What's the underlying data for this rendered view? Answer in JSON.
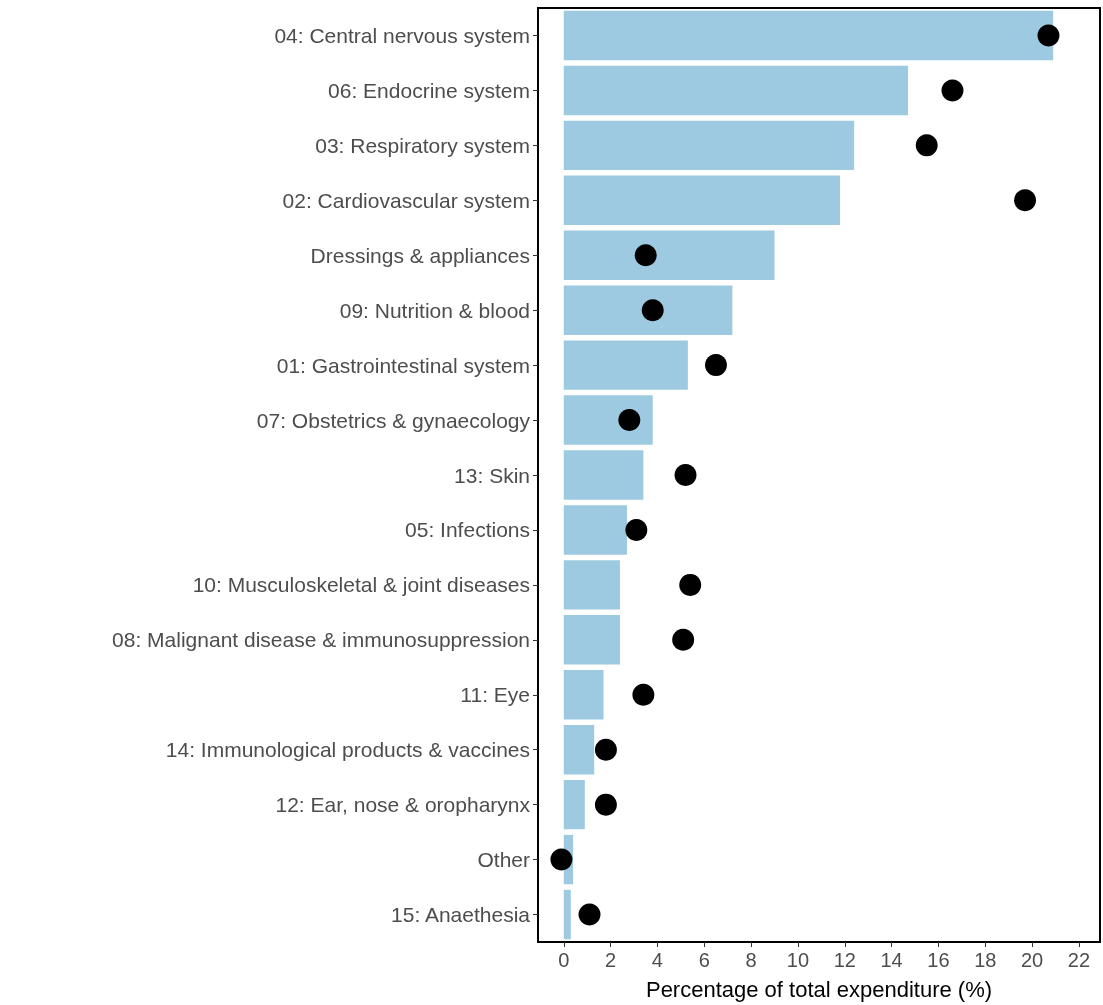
{
  "chart_data": {
    "type": "bar",
    "orientation": "horizontal",
    "xlabel": "Percentage of total expenditure (%)",
    "categories": [
      "04: Central nervous system",
      "06: Endocrine system",
      "03: Respiratory system",
      "02: Cardiovascular system",
      "Dressings & appliances",
      "09: Nutrition & blood",
      "01: Gastrointestinal system",
      "07: Obstetrics & gynaecology",
      "13: Skin",
      "05: Infections",
      "10: Musculoskeletal & joint diseases",
      "08: Malignant disease & immunosuppression",
      "11: Eye",
      "14: Immunological products & vaccines",
      "12: Ear, nose & oropharynx",
      "Other",
      "15: Anaethesia"
    ],
    "series": [
      {
        "color": "#9ecae1",
        "values": [
          20.9,
          14.7,
          12.4,
          11.8,
          9.0,
          7.2,
          5.3,
          3.8,
          3.4,
          2.7,
          2.4,
          2.4,
          1.7,
          1.3,
          0.9,
          0.4,
          0.3
        ]
      },
      {
        "type": "scatter",
        "color": "#000000",
        "x": [
          "04: Central nervous system",
          "06: Endocrine system",
          "03: Respiratory system",
          "02: Cardiovascular system",
          "Dressings & appliances",
          "09: Nutrition & blood",
          "01: Gastrointestinal system",
          "07: Obstetrics & gynaecology",
          "13: Skin",
          "05: Infections",
          "10: Musculoskeletal & joint diseases",
          "08: Malignant disease & immunosuppression",
          "11: Eye",
          "14: Immunological products & vaccines",
          "12: Ear, nose & oropharynx",
          "Other",
          "15: Anaethesia"
        ],
        "values": [
          20.7,
          16.6,
          15.5,
          19.7,
          3.5,
          3.8,
          6.5,
          2.8,
          5.2,
          3.1,
          5.4,
          5.1,
          3.4,
          1.8,
          1.8,
          -0.1,
          1.1
        ]
      }
    ],
    "xlim": [
      -1.1,
      22.9
    ],
    "xticks": [
      0,
      2,
      4,
      6,
      8,
      10,
      12,
      14,
      16,
      18,
      20,
      22
    ],
    "marker": "circle",
    "grid": false
  }
}
